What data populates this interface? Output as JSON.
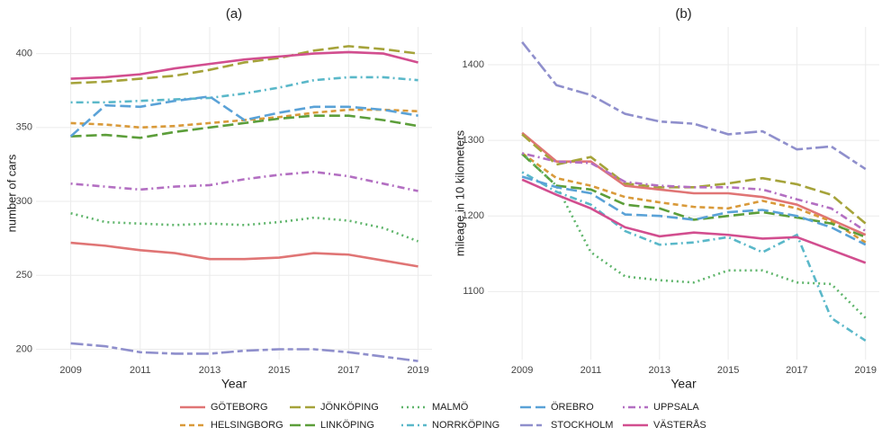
{
  "chart_data": [
    {
      "type": "line",
      "title": "(a)",
      "x_label": "Year",
      "y_label": "number of cars",
      "x": [
        2009,
        2010,
        2011,
        2012,
        2013,
        2014,
        2015,
        2016,
        2017,
        2018,
        2019
      ],
      "xlim": [
        2008,
        2019.4
      ],
      "xticks": [
        2009,
        2011,
        2013,
        2015,
        2017,
        2019
      ],
      "ylim": [
        193,
        418
      ],
      "yticks": [
        200,
        250,
        300,
        350,
        400
      ],
      "grid": true,
      "series": [
        {
          "name": "GÖTEBORG",
          "color": "#e07575",
          "dash": "solid",
          "values": [
            272,
            270,
            267,
            265,
            261,
            261,
            262,
            265,
            264,
            260,
            256
          ]
        },
        {
          "name": "HELSINGBORG",
          "color": "#d99a3a",
          "dash": "dashed",
          "values": [
            353,
            352,
            350,
            351,
            353,
            355,
            357,
            360,
            362,
            362,
            361
          ]
        },
        {
          "name": "JÖNKÖPING",
          "color": "#a5a33a",
          "dash": "longdash",
          "values": [
            380,
            381,
            383,
            385,
            389,
            394,
            397,
            402,
            405,
            403,
            400
          ]
        },
        {
          "name": "LINKÖPING",
          "color": "#5c9e3a",
          "dash": "longdash",
          "values": [
            344,
            345,
            343,
            347,
            350,
            353,
            356,
            358,
            358,
            355,
            351
          ]
        },
        {
          "name": "MALMÖ",
          "color": "#5fb56b",
          "dash": "dotted",
          "values": [
            292,
            286,
            285,
            284,
            285,
            284,
            286,
            289,
            287,
            282,
            273
          ]
        },
        {
          "name": "NORRKÖPING",
          "color": "#5ab8c9",
          "dash": "dotdash",
          "values": [
            367,
            367,
            368,
            369,
            370,
            373,
            377,
            382,
            384,
            384,
            382
          ]
        },
        {
          "name": "ÖREBRO",
          "color": "#5aa2d7",
          "dash": "longdash",
          "values": [
            344,
            365,
            364,
            368,
            371,
            355,
            360,
            364,
            364,
            362,
            358
          ]
        },
        {
          "name": "STOCKHOLM",
          "color": "#8f8fcc",
          "dash": "twodash",
          "values": [
            204,
            202,
            198,
            197,
            197,
            199,
            200,
            200,
            198,
            195,
            192
          ]
        },
        {
          "name": "UPPSALA",
          "color": "#b36fc2",
          "dash": "dotdash",
          "values": [
            312,
            310,
            308,
            310,
            311,
            315,
            318,
            320,
            317,
            312,
            307
          ]
        },
        {
          "name": "VÄSTERÅS",
          "color": "#d24e8f",
          "dash": "solid",
          "values": [
            383,
            384,
            386,
            390,
            393,
            396,
            398,
            400,
            401,
            400,
            394
          ]
        }
      ]
    },
    {
      "type": "line",
      "title": "(b)",
      "x_label": "Year",
      "y_label": "mileage in 10 kilometers",
      "x": [
        2009,
        2010,
        2011,
        2012,
        2013,
        2014,
        2015,
        2016,
        2017,
        2018,
        2019
      ],
      "xlim": [
        2008,
        2019.4
      ],
      "xticks": [
        2009,
        2011,
        2013,
        2015,
        2017,
        2019
      ],
      "ylim": [
        1010,
        1450
      ],
      "yticks": [
        1100,
        1200,
        1300,
        1400
      ],
      "grid": true,
      "series": [
        {
          "name": "GÖTEBORG",
          "color": "#e07575",
          "dash": "solid",
          "values": [
            1310,
            1272,
            1272,
            1240,
            1235,
            1230,
            1230,
            1225,
            1215,
            1195,
            1175
          ]
        },
        {
          "name": "HELSINGBORG",
          "color": "#d99a3a",
          "dash": "dashed",
          "values": [
            1283,
            1250,
            1240,
            1225,
            1218,
            1212,
            1210,
            1220,
            1210,
            1193,
            1165
          ]
        },
        {
          "name": "JÖNKÖPING",
          "color": "#a5a33a",
          "dash": "longdash",
          "values": [
            1308,
            1268,
            1278,
            1243,
            1238,
            1238,
            1243,
            1250,
            1242,
            1228,
            1190
          ]
        },
        {
          "name": "LINKÖPING",
          "color": "#5c9e3a",
          "dash": "longdash",
          "values": [
            1282,
            1240,
            1235,
            1215,
            1210,
            1195,
            1200,
            1205,
            1198,
            1190,
            1172
          ]
        },
        {
          "name": "MALMÖ",
          "color": "#5fb56b",
          "dash": "dotted",
          "values": [
            1283,
            1240,
            1152,
            1120,
            1115,
            1112,
            1128,
            1128,
            1112,
            1110,
            1065
          ]
        },
        {
          "name": "NORRKÖPING",
          "color": "#5ab8c9",
          "dash": "dotdash",
          "values": [
            1258,
            1232,
            1215,
            1180,
            1162,
            1165,
            1172,
            1152,
            1175,
            1065,
            1035
          ]
        },
        {
          "name": "ÖREBRO",
          "color": "#5aa2d7",
          "dash": "longdash",
          "values": [
            1252,
            1238,
            1230,
            1202,
            1200,
            1195,
            1205,
            1208,
            1200,
            1185,
            1162
          ]
        },
        {
          "name": "STOCKHOLM",
          "color": "#8f8fcc",
          "dash": "twodash",
          "values": [
            1430,
            1373,
            1360,
            1335,
            1325,
            1322,
            1308,
            1312,
            1288,
            1292,
            1262
          ]
        },
        {
          "name": "UPPSALA",
          "color": "#b36fc2",
          "dash": "dotdash",
          "values": [
            1283,
            1272,
            1270,
            1245,
            1240,
            1238,
            1238,
            1235,
            1222,
            1210,
            1180
          ]
        },
        {
          "name": "VÄSTERÅS",
          "color": "#d24e8f",
          "dash": "solid",
          "values": [
            1248,
            1228,
            1210,
            1185,
            1173,
            1178,
            1175,
            1170,
            1172,
            1155,
            1138
          ]
        }
      ]
    }
  ]
}
